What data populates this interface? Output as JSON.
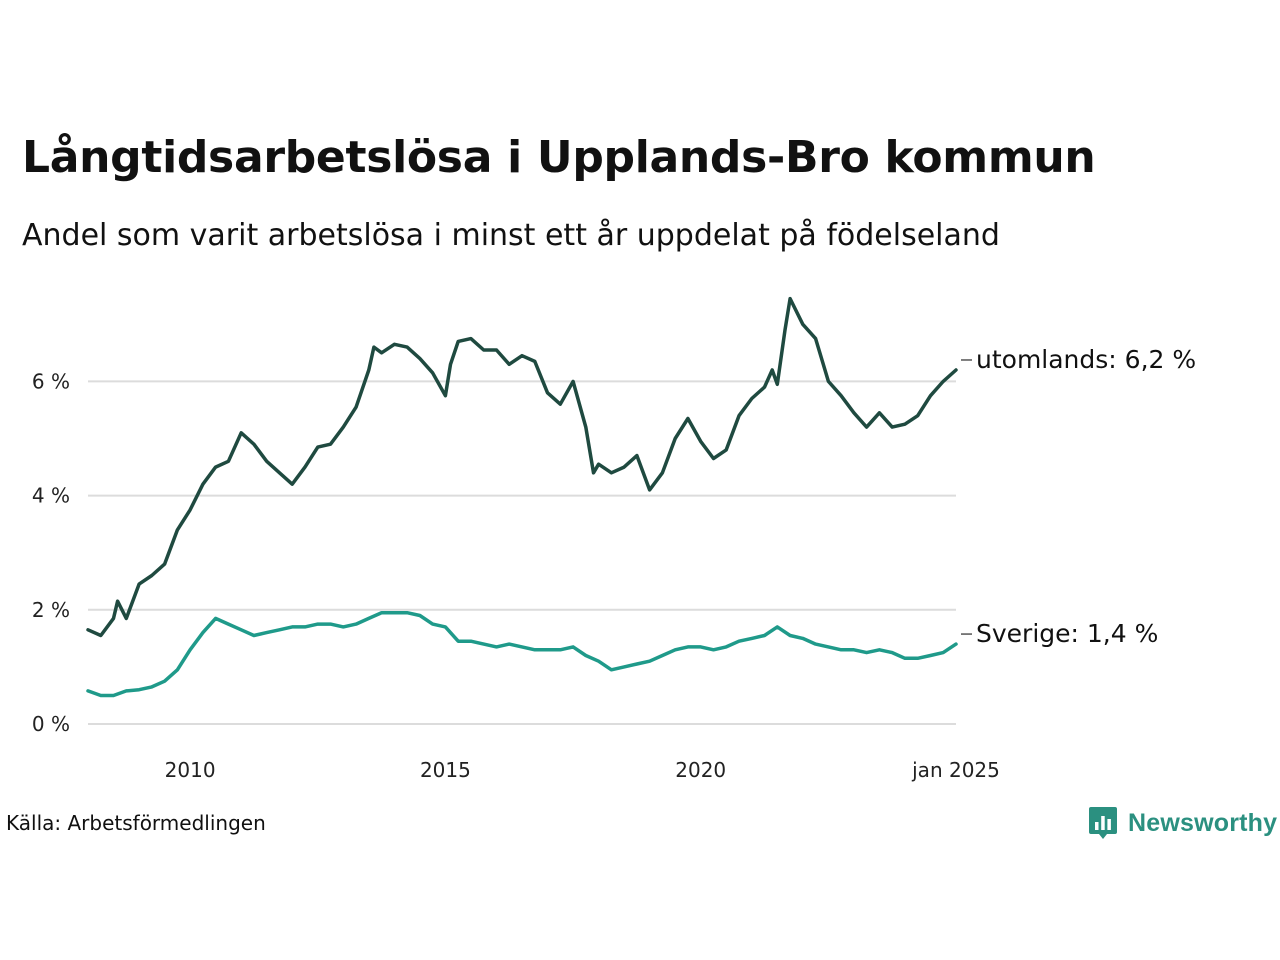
{
  "title": "Långtidsarbetslösa i Upplands-Bro kommun",
  "subtitle": "Andel som varit arbetslösa i minst ett år uppdelat på födelseland",
  "source": "Källa: Arbetsförmedlingen",
  "brand": "Newsworthy",
  "colors": {
    "utomlands": "#1f4a40",
    "sverige": "#1f9a8a",
    "grid": "#dcdcdc",
    "brand": "#2b9080"
  },
  "chart_data": {
    "type": "line",
    "title": "Långtidsarbetslösa i Upplands-Bro kommun",
    "subtitle": "Andel som varit arbetslösa i minst ett år uppdelat på födelseland",
    "xlabel": "",
    "ylabel": "",
    "xlim": [
      2008.0,
      2025.0
    ],
    "ylim": [
      0,
      7.5
    ],
    "grid": "horizontal",
    "legend": "direct labels at line ends",
    "x_ticks": [
      {
        "value": 2010,
        "label": "2010"
      },
      {
        "value": 2015,
        "label": "2015"
      },
      {
        "value": 2020,
        "label": "2020"
      },
      {
        "value": 2025,
        "label": "jan 2025"
      }
    ],
    "y_ticks": [
      {
        "value": 0,
        "label": "0 %"
      },
      {
        "value": 2,
        "label": "2 %"
      },
      {
        "value": 4,
        "label": "4 %"
      },
      {
        "value": 6,
        "label": "6 %"
      }
    ],
    "series": [
      {
        "key": "utomlands",
        "end_label": "utomlands: 6,2 %",
        "points": [
          [
            2008.0,
            1.65
          ],
          [
            2008.25,
            1.55
          ],
          [
            2008.5,
            1.85
          ],
          [
            2008.58,
            2.15
          ],
          [
            2008.75,
            1.85
          ],
          [
            2009.0,
            2.45
          ],
          [
            2009.25,
            2.6
          ],
          [
            2009.5,
            2.8
          ],
          [
            2009.75,
            3.4
          ],
          [
            2010.0,
            3.75
          ],
          [
            2010.25,
            4.2
          ],
          [
            2010.5,
            4.5
          ],
          [
            2010.75,
            4.6
          ],
          [
            2011.0,
            5.1
          ],
          [
            2011.25,
            4.9
          ],
          [
            2011.5,
            4.6
          ],
          [
            2011.75,
            4.4
          ],
          [
            2012.0,
            4.2
          ],
          [
            2012.25,
            4.5
          ],
          [
            2012.5,
            4.85
          ],
          [
            2012.75,
            4.9
          ],
          [
            2013.0,
            5.2
          ],
          [
            2013.25,
            5.55
          ],
          [
            2013.5,
            6.2
          ],
          [
            2013.6,
            6.6
          ],
          [
            2013.75,
            6.5
          ],
          [
            2014.0,
            6.65
          ],
          [
            2014.25,
            6.6
          ],
          [
            2014.5,
            6.4
          ],
          [
            2014.75,
            6.15
          ],
          [
            2015.0,
            5.75
          ],
          [
            2015.1,
            6.3
          ],
          [
            2015.25,
            6.7
          ],
          [
            2015.5,
            6.75
          ],
          [
            2015.75,
            6.55
          ],
          [
            2016.0,
            6.55
          ],
          [
            2016.25,
            6.3
          ],
          [
            2016.5,
            6.45
          ],
          [
            2016.75,
            6.35
          ],
          [
            2017.0,
            5.8
          ],
          [
            2017.25,
            5.6
          ],
          [
            2017.5,
            6.0
          ],
          [
            2017.75,
            5.2
          ],
          [
            2017.9,
            4.4
          ],
          [
            2018.0,
            4.55
          ],
          [
            2018.25,
            4.4
          ],
          [
            2018.5,
            4.5
          ],
          [
            2018.75,
            4.7
          ],
          [
            2019.0,
            4.1
          ],
          [
            2019.25,
            4.4
          ],
          [
            2019.5,
            5.0
          ],
          [
            2019.75,
            5.35
          ],
          [
            2020.0,
            4.95
          ],
          [
            2020.25,
            4.65
          ],
          [
            2020.5,
            4.8
          ],
          [
            2020.75,
            5.4
          ],
          [
            2021.0,
            5.7
          ],
          [
            2021.25,
            5.9
          ],
          [
            2021.4,
            6.2
          ],
          [
            2021.5,
            5.95
          ],
          [
            2021.65,
            6.9
          ],
          [
            2021.75,
            7.45
          ],
          [
            2022.0,
            7.0
          ],
          [
            2022.25,
            6.75
          ],
          [
            2022.5,
            6.0
          ],
          [
            2022.75,
            5.75
          ],
          [
            2023.0,
            5.45
          ],
          [
            2023.25,
            5.2
          ],
          [
            2023.5,
            5.45
          ],
          [
            2023.75,
            5.2
          ],
          [
            2024.0,
            5.25
          ],
          [
            2024.25,
            5.4
          ],
          [
            2024.5,
            5.75
          ],
          [
            2024.75,
            6.0
          ],
          [
            2025.0,
            6.2
          ]
        ]
      },
      {
        "key": "sverige",
        "end_label": "Sverige: 1,4 %",
        "points": [
          [
            2008.0,
            0.58
          ],
          [
            2008.25,
            0.5
          ],
          [
            2008.5,
            0.5
          ],
          [
            2008.75,
            0.58
          ],
          [
            2009.0,
            0.6
          ],
          [
            2009.25,
            0.65
          ],
          [
            2009.5,
            0.75
          ],
          [
            2009.75,
            0.95
          ],
          [
            2010.0,
            1.3
          ],
          [
            2010.25,
            1.6
          ],
          [
            2010.5,
            1.85
          ],
          [
            2010.75,
            1.75
          ],
          [
            2011.0,
            1.65
          ],
          [
            2011.25,
            1.55
          ],
          [
            2011.5,
            1.6
          ],
          [
            2011.75,
            1.65
          ],
          [
            2012.0,
            1.7
          ],
          [
            2012.25,
            1.7
          ],
          [
            2012.5,
            1.75
          ],
          [
            2012.75,
            1.75
          ],
          [
            2013.0,
            1.7
          ],
          [
            2013.25,
            1.75
          ],
          [
            2013.5,
            1.85
          ],
          [
            2013.75,
            1.95
          ],
          [
            2014.0,
            1.95
          ],
          [
            2014.25,
            1.95
          ],
          [
            2014.5,
            1.9
          ],
          [
            2014.75,
            1.75
          ],
          [
            2015.0,
            1.7
          ],
          [
            2015.25,
            1.45
          ],
          [
            2015.5,
            1.45
          ],
          [
            2015.75,
            1.4
          ],
          [
            2016.0,
            1.35
          ],
          [
            2016.25,
            1.4
          ],
          [
            2016.5,
            1.35
          ],
          [
            2016.75,
            1.3
          ],
          [
            2017.0,
            1.3
          ],
          [
            2017.25,
            1.3
          ],
          [
            2017.5,
            1.35
          ],
          [
            2017.75,
            1.2
          ],
          [
            2018.0,
            1.1
          ],
          [
            2018.25,
            0.95
          ],
          [
            2018.5,
            1.0
          ],
          [
            2018.75,
            1.05
          ],
          [
            2019.0,
            1.1
          ],
          [
            2019.25,
            1.2
          ],
          [
            2019.5,
            1.3
          ],
          [
            2019.75,
            1.35
          ],
          [
            2020.0,
            1.35
          ],
          [
            2020.25,
            1.3
          ],
          [
            2020.5,
            1.35
          ],
          [
            2020.75,
            1.45
          ],
          [
            2021.0,
            1.5
          ],
          [
            2021.25,
            1.55
          ],
          [
            2021.5,
            1.7
          ],
          [
            2021.75,
            1.55
          ],
          [
            2022.0,
            1.5
          ],
          [
            2022.25,
            1.4
          ],
          [
            2022.5,
            1.35
          ],
          [
            2022.75,
            1.3
          ],
          [
            2023.0,
            1.3
          ],
          [
            2023.25,
            1.25
          ],
          [
            2023.5,
            1.3
          ],
          [
            2023.75,
            1.25
          ],
          [
            2024.0,
            1.15
          ],
          [
            2024.25,
            1.15
          ],
          [
            2024.5,
            1.2
          ],
          [
            2024.75,
            1.25
          ],
          [
            2025.0,
            1.4
          ]
        ]
      }
    ]
  }
}
